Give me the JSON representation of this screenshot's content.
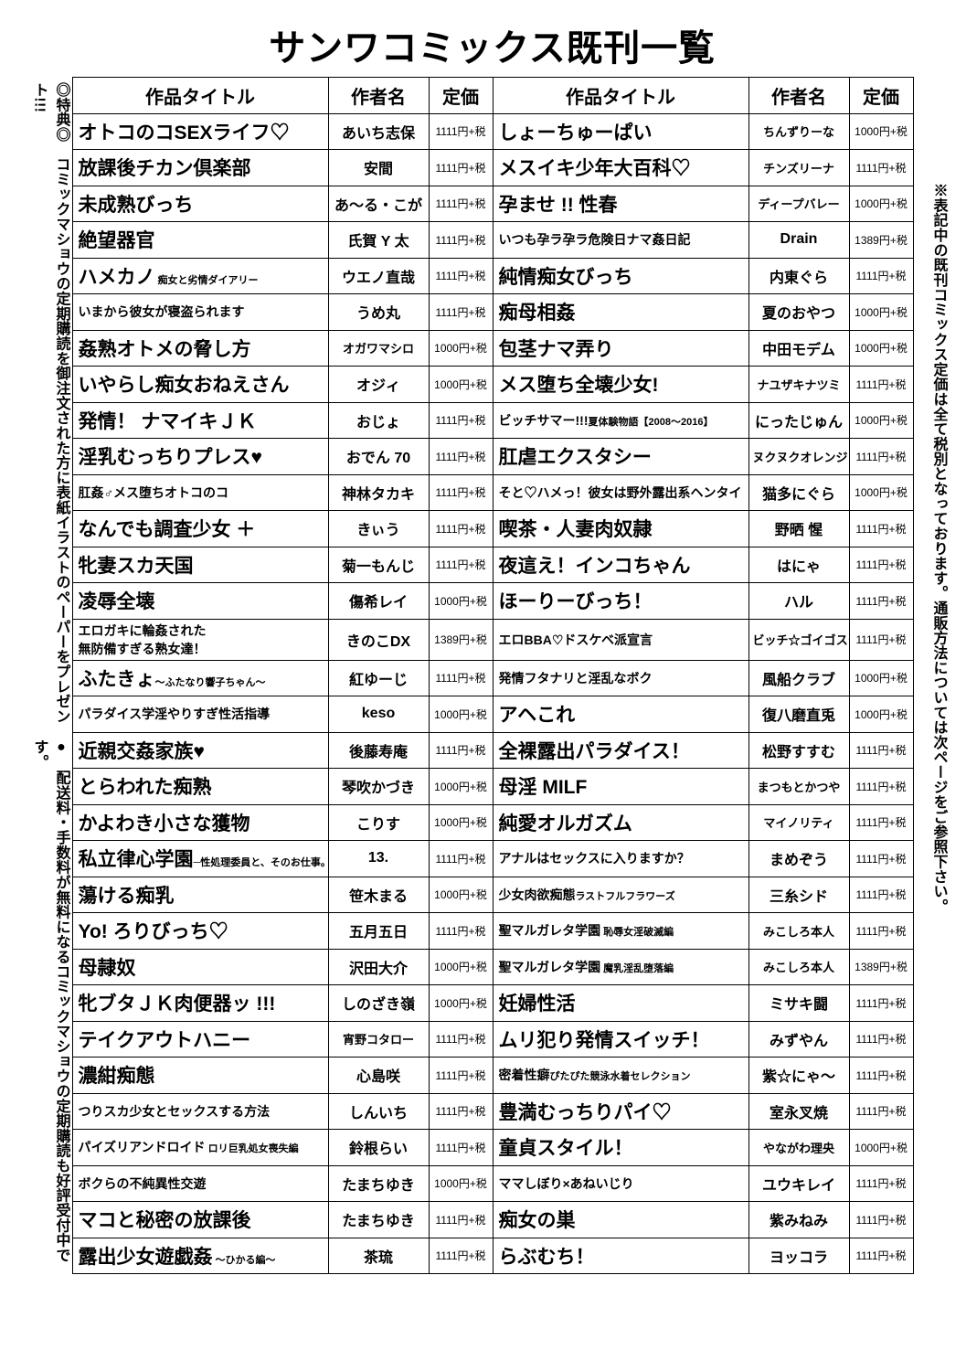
{
  "page_title": "サンワコミックス既刊一覧",
  "left_note_1": "●　配送料・手数料が無料になるコミックマショウの定期購読も好評受付中です。",
  "left_note_2": "◎特典◎　コミックマショウの定期購読を御注文された方に表紙イラストのペーパーをプレゼント!!!",
  "right_note": "※表記中の既刊コミックス定価は全て税別となっております。通販方法については次ページをご参照下さい。",
  "headers": {
    "title": "作品タイトル",
    "author": "作者名",
    "price": "定価"
  },
  "left_rows": [
    {
      "title": "オトコのコSEXライフ♡",
      "author": "あいち志保",
      "price": "1111円+税"
    },
    {
      "title": "放課後チカン倶楽部",
      "author": "安間",
      "price": "1111円+税"
    },
    {
      "title": "未成熟びっち",
      "author": "あ〜る・こが",
      "price": "1111円+税"
    },
    {
      "title": "絶望器官",
      "author": "氏賀 Y 太",
      "price": "1111円+税"
    },
    {
      "title": "ハメカノ",
      "sub": " 痴女と劣情ダイアリー",
      "author": "ウエノ直哉",
      "price": "1111円+税"
    },
    {
      "title": "いまから彼女が寝盗られます",
      "author": "うめ丸",
      "price": "1111円+税",
      "tsmall": true
    },
    {
      "title": "姦熟オトメの脅し方",
      "author": "オガワマシロ",
      "price": "1000円+税",
      "asmall": true
    },
    {
      "title": "いやらし痴女おねえさん",
      "author": "オジィ",
      "price": "1000円+税"
    },
    {
      "title": "発情！ ナマイキＪＫ",
      "author": "おじょ",
      "price": "1111円+税"
    },
    {
      "title": "淫乳むっちりプレス♥",
      "author": "おでん 70",
      "price": "1111円+税"
    },
    {
      "title": "肛姦♂メス堕ちオトコのコ",
      "author": "神林タカキ",
      "price": "1111円+税",
      "tsmall": true
    },
    {
      "title": "なんでも調査少女 ＋",
      "author": "きぃう",
      "price": "1111円+税"
    },
    {
      "title": "牝妻スカ天国",
      "author": "菊一もんじ",
      "price": "1111円+税"
    },
    {
      "title": "凌辱全壊",
      "author": "傷希レイ",
      "price": "1000円+税"
    },
    {
      "title": "エロガキに輪姦された\n無防備すぎる熟女達！",
      "author": "きのこDX",
      "price": "1389円+税",
      "tsmall": true
    },
    {
      "title": "ふたきょ",
      "sub": "〜ふたなり響子ちゃん〜",
      "author": "紅ゆーじ",
      "price": "1111円+税"
    },
    {
      "title": "パラダイス学淫やりすぎ性活指導",
      "author": "keso",
      "price": "1000円+税",
      "tsmall": true
    },
    {
      "title": "近親交姦家族♥",
      "author": "後藤寿庵",
      "price": "1111円+税"
    },
    {
      "title": "とらわれた痴熟",
      "author": "琴吹かづき",
      "price": "1000円+税"
    },
    {
      "title": "かよわき小さな獲物",
      "author": "こりす",
      "price": "1000円+税"
    },
    {
      "title": "私立律心学園",
      "sub": "─性処理委員と、そのお仕事。─",
      "author": "13.",
      "price": "1111円+税"
    },
    {
      "title": "蕩ける痴乳",
      "author": "笹木まる",
      "price": "1000円+税"
    },
    {
      "title": "Yo! ろりびっち♡",
      "author": "五月五日",
      "price": "1111円+税"
    },
    {
      "title": "母隷奴",
      "author": "沢田大介",
      "price": "1000円+税"
    },
    {
      "title": "牝ブタＪＫ肉便器ッ !!!",
      "author": "しのざき嶺",
      "price": "1000円+税"
    },
    {
      "title": "テイクアウトハニー",
      "author": "宵野コタロー",
      "price": "1111円+税",
      "asmall": true
    },
    {
      "title": "濃紺痴態",
      "author": "心島咲",
      "price": "1111円+税"
    },
    {
      "title": "つりスカ少女とセックスする方法",
      "author": "しんいち",
      "price": "1111円+税",
      "tsmall": true
    },
    {
      "title": "パイズリアンドロイド",
      "sub": " ロリ巨乳処女喪失編",
      "author": "鈴根らい",
      "price": "1111円+税",
      "tsmall": true
    },
    {
      "title": "ボクらの不純異性交遊",
      "author": "たまちゆき",
      "price": "1000円+税",
      "tsmall": true
    },
    {
      "title": "マコと秘密の放課後",
      "author": "たまちゆき",
      "price": "1111円+税"
    },
    {
      "title": "露出少女遊戯姦",
      "sub": " 〜ひかる編〜",
      "author": "茶琉",
      "price": "1111円+税"
    }
  ],
  "right_rows": [
    {
      "title": "しょーちゅーぱい",
      "author": "ちんずりーな",
      "price": "1000円+税",
      "asmall": true
    },
    {
      "title": "メスイキ少年大百科♡",
      "author": "チンズリーナ",
      "price": "1111円+税",
      "asmall": true
    },
    {
      "title": "孕ませ !! 性春",
      "author": "ディープバレー",
      "price": "1000円+税",
      "asmall": true
    },
    {
      "title": "いつも孕ラ孕ラ危険日ナマ姦日記",
      "author": "Drain",
      "price": "1389円+税",
      "tsmall": true
    },
    {
      "title": "純情痴女びっち",
      "author": "内東ぐら",
      "price": "1111円+税"
    },
    {
      "title": "痴母相姦",
      "author": "夏のおやつ",
      "price": "1000円+税"
    },
    {
      "title": "包茎ナマ弄り",
      "author": "中田モデム",
      "price": "1000円+税"
    },
    {
      "title": "メス堕ち全壊少女!",
      "author": "ナユザキナツミ",
      "price": "1111円+税",
      "asmall": true
    },
    {
      "title": "ビッチサマー!!!",
      "sub": "夏体験物語【2008〜2016】",
      "author": "にったじゅん",
      "price": "1000円+税",
      "tsmall": true
    },
    {
      "title": "肛虐エクスタシー",
      "author": "ヌクヌクオレンジ",
      "price": "1111円+税",
      "asmall": true
    },
    {
      "title": "そと♡ハメっ！彼女は野外露出系ヘンタイ",
      "author": "猫多にぐら",
      "price": "1000円+税",
      "tsmall": true
    },
    {
      "title": "喫茶・人妻肉奴隷",
      "author": "野晒 惺",
      "price": "1111円+税"
    },
    {
      "title": "夜這え！インコちゃん",
      "author": "はにゃ",
      "price": "1111円+税"
    },
    {
      "title": "ほーりーびっち！",
      "author": "ハル",
      "price": "1111円+税"
    },
    {
      "title": "エロBBA♡ドスケベ派宣言",
      "author": "ビッチ☆ゴイゴスター",
      "price": "1111円+税",
      "tsmall": true,
      "asmall": true
    },
    {
      "title": "発情フタナリと淫乱なボク",
      "author": "風船クラブ",
      "price": "1000円+税",
      "tsmall": true
    },
    {
      "title": "アヘこれ",
      "author": "復八磨直兎",
      "price": "1000円+税"
    },
    {
      "title": "全裸露出パラダイス！",
      "author": "松野すすむ",
      "price": "1111円+税"
    },
    {
      "title": "母淫 MILF",
      "author": "まつもとかつや",
      "price": "1111円+税",
      "asmall": true
    },
    {
      "title": "純愛オルガズム",
      "author": "マイノリティ",
      "price": "1111円+税",
      "asmall": true
    },
    {
      "title": "アナルはセックスに入りますか？",
      "author": "まめぞう",
      "price": "1111円+税",
      "tsmall": true
    },
    {
      "title": "少女肉欲痴態",
      "sub": "ラストフルフラワーズ",
      "author": "三糸シド",
      "price": "1111円+税",
      "tsmall": true
    },
    {
      "title": "聖マルガレタ学園",
      "sub": " 恥辱女淫破滅編",
      "author": "みこしろ本人",
      "price": "1111円+税",
      "tsmall": true,
      "asmall": true
    },
    {
      "title": "聖マルガレタ学園",
      "sub": " 魔乳淫乱堕落編",
      "author": "みこしろ本人",
      "price": "1389円+税",
      "tsmall": true,
      "asmall": true
    },
    {
      "title": "妊婦性活",
      "author": "ミサキ闘",
      "price": "1111円+税"
    },
    {
      "title": "ムリ犯り発情スイッチ！",
      "author": "みずやん",
      "price": "1111円+税"
    },
    {
      "title": "密着性癖",
      "sub": "ぴたぴた競泳水着セレクション",
      "author": "紫☆にゃ〜",
      "price": "1111円+税",
      "tsmall": true
    },
    {
      "title": "豊満むっちりパイ♡",
      "author": "室永叉焼",
      "price": "1111円+税"
    },
    {
      "title": "童貞スタイル！",
      "author": "やながわ理央",
      "price": "1000円+税",
      "asmall": true
    },
    {
      "title": "ママしぼり×あねいじり",
      "author": "ユウキレイ",
      "price": "1111円+税",
      "tsmall": true
    },
    {
      "title": "痴女の巣",
      "author": "紫みねみ",
      "price": "1111円+税"
    },
    {
      "title": "らぶむち！",
      "author": "ヨッコラ",
      "price": "1111円+税"
    }
  ]
}
